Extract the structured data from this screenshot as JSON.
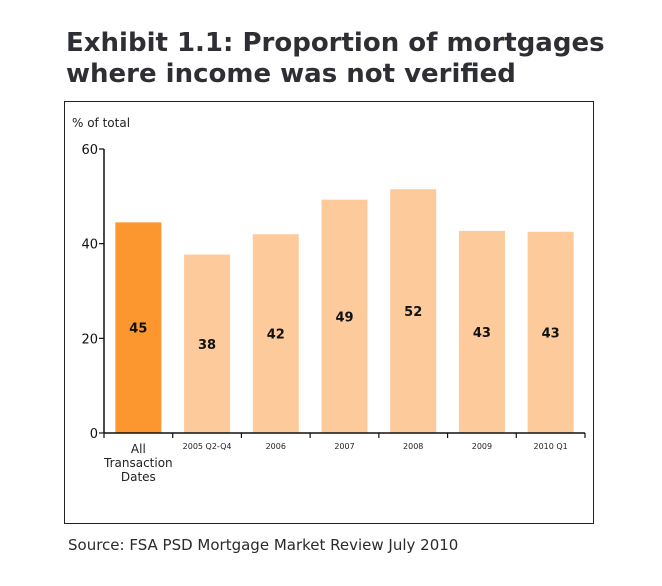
{
  "title": "Exhibit 1.1: Proportion of mortgages where income was not verified",
  "source": "Source: FSA PSD Mortgage Market Review July 2010",
  "chart_data": {
    "type": "bar",
    "categories": [
      "All Transaction Dates",
      "2005 Q2-Q4",
      "2006",
      "2007",
      "2008",
      "2009",
      "2010 Q1"
    ],
    "values": [
      44.5,
      37.7,
      42,
      49.3,
      51.5,
      42.7,
      42.5
    ],
    "data_labels": [
      "45",
      "38",
      "42",
      "49",
      "52",
      "43",
      "43"
    ],
    "ylabel": "% of total",
    "xlabel": "",
    "ylim": [
      0,
      60
    ],
    "yticks": [
      0,
      20,
      40,
      60
    ],
    "highlight_color": "#fc962e",
    "bar_color": "#fdcb9b",
    "grid": false
  }
}
